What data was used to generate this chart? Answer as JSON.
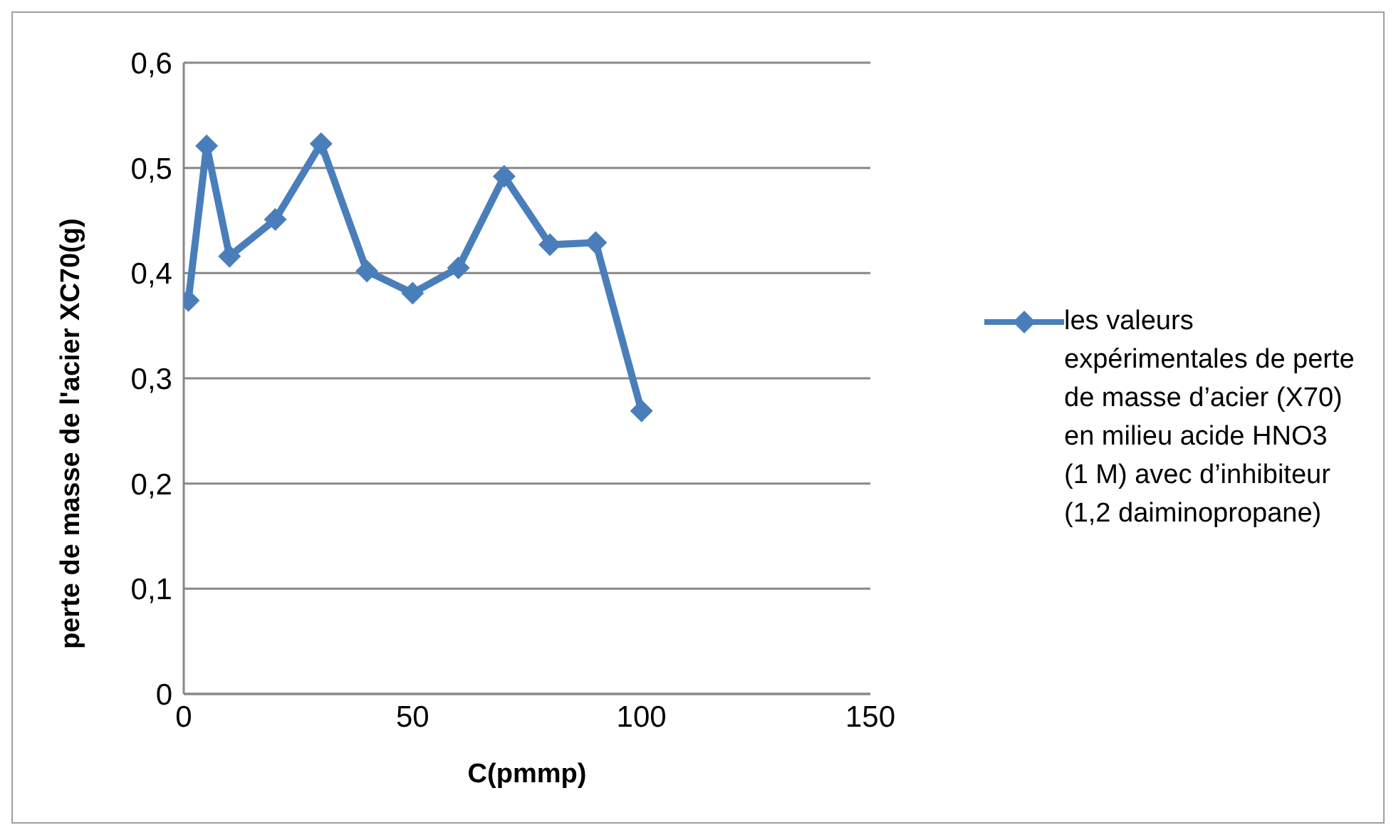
{
  "chart_data": {
    "type": "line",
    "xlabel": "C(pmmp)",
    "ylabel": "perte de masse de l'acier XC70(g)",
    "x": [
      1,
      5,
      10,
      20,
      30,
      40,
      50,
      60,
      70,
      80,
      90,
      100
    ],
    "series": [
      {
        "name": "les valeurs expérimentales de perte de masse d’acier (X70) en milieu acide HNO3 (1 M) avec d’inhibiteur (1,2 daiminopropane)",
        "color": "#4a7ebb",
        "values": [
          0.374,
          0.521,
          0.416,
          0.451,
          0.523,
          0.402,
          0.381,
          0.405,
          0.492,
          0.427,
          0.429,
          0.269
        ]
      }
    ],
    "xlim": [
      0,
      150
    ],
    "xticks": [
      0,
      50,
      100,
      150
    ],
    "ylim": [
      0,
      0.6
    ],
    "yticks": [
      {
        "value": 0,
        "label": "0"
      },
      {
        "value": 0.1,
        "label": "0,1"
      },
      {
        "value": 0.2,
        "label": "0,2"
      },
      {
        "value": 0.3,
        "label": "0,3"
      },
      {
        "value": 0.4,
        "label": "0,4"
      },
      {
        "value": 0.5,
        "label": "0,5"
      },
      {
        "value": 0.6,
        "label": "0,6"
      }
    ],
    "grid": "y",
    "legend": "right",
    "marker": "diamond",
    "line_style": "solid"
  }
}
